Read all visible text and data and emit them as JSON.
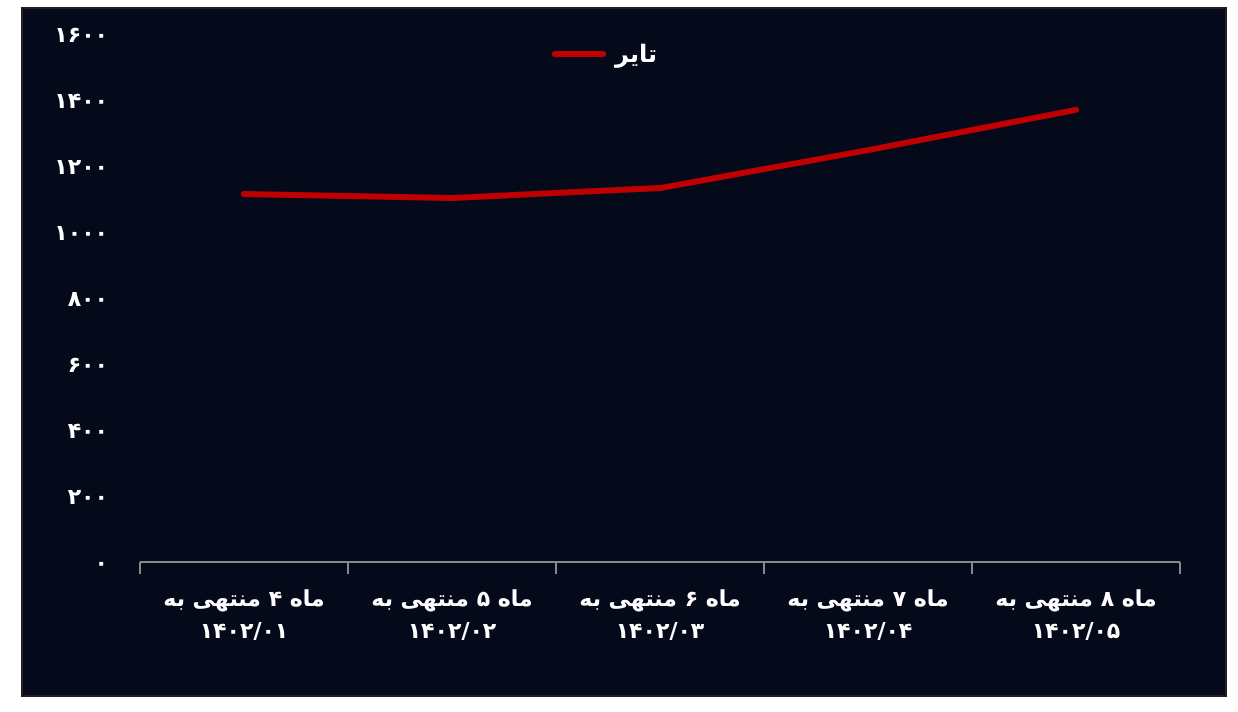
{
  "chart_data": {
    "type": "line",
    "categories": [
      "ماه ۴ منتهی به\n۱۴۰۲/۰۱",
      "ماه ۵ منتهی به\n۱۴۰۲/۰۲",
      "ماه ۶ منتهی به\n۱۴۰۲/۰۳",
      "ماه ۷ منتهی به\n۱۴۰۲/۰۴",
      "ماه ۸ منتهی به\n۱۴۰۲/۰۵"
    ],
    "series": [
      {
        "name": "تایر",
        "color": "#c00000",
        "values": [
          1115,
          1103,
          1133,
          1248,
          1370
        ]
      }
    ],
    "ylim": [
      0,
      1600
    ],
    "yticks": [
      {
        "value": 0,
        "label": "۰"
      },
      {
        "value": 200,
        "label": "۲۰۰"
      },
      {
        "value": 400,
        "label": "۴۰۰"
      },
      {
        "value": 600,
        "label": "۶۰۰"
      },
      {
        "value": 800,
        "label": "۸۰۰"
      },
      {
        "value": 1000,
        "label": "۱۰۰۰"
      },
      {
        "value": 1200,
        "label": "۱۲۰۰"
      },
      {
        "value": 1400,
        "label": "۱۴۰۰"
      },
      {
        "value": 1600,
        "label": "۱۶۰۰"
      }
    ],
    "grid": false,
    "legend": "top",
    "marker": "none",
    "line_style": "solid"
  }
}
